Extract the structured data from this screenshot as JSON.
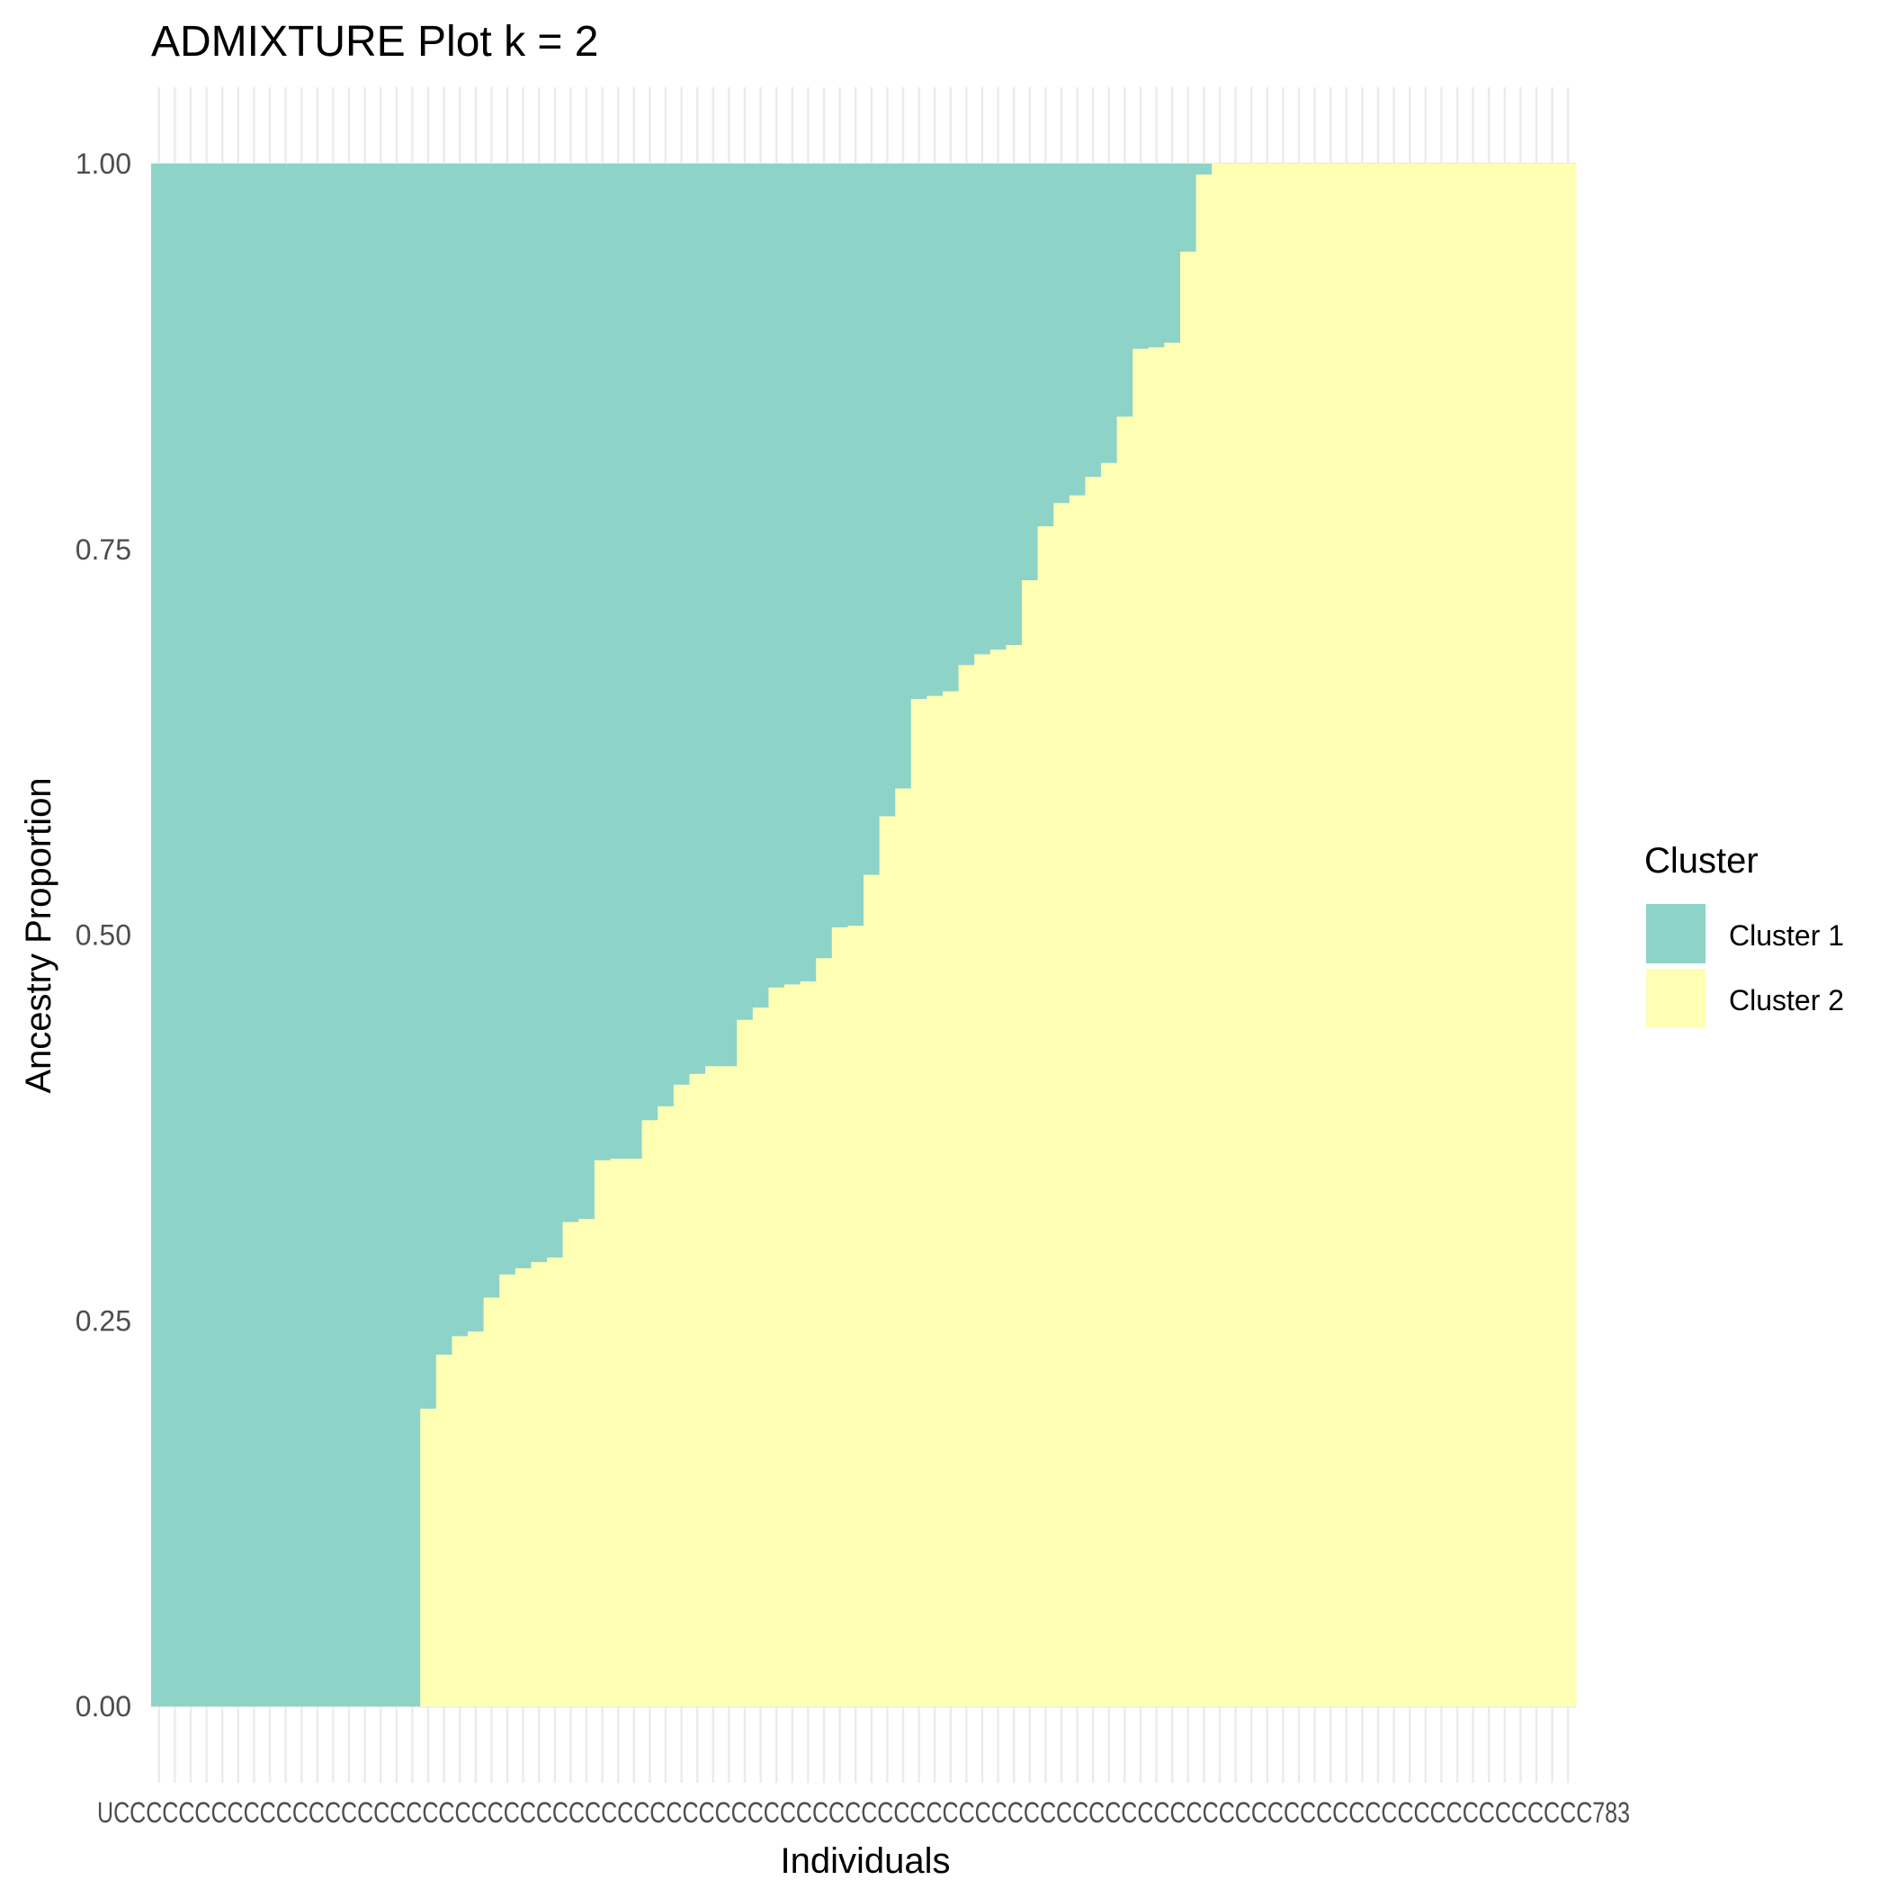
{
  "chart_data": {
    "type": "bar",
    "title": "ADMIXTURE Plot k = 2",
    "xlabel": "Individuals",
    "ylabel": "Ancestry Proportion",
    "ylim": [
      0,
      1
    ],
    "y_ticks": [
      "0.00",
      "0.25",
      "0.50",
      "0.75",
      "1.00"
    ],
    "stacked": true,
    "grid": true,
    "legend": {
      "title": "Cluster",
      "position": "right"
    },
    "x_tick_text": "UCCCCCCCCCCCCCCCCCCCCCCCCCCCCCCCCCCCCCCCCCCCCCCCCCCCCCCCCCCCCCCCCCCCCCCCCCCCCCCCCCCCCCCCCCCC783",
    "colors": {
      "Cluster 1": "#8DD3C7",
      "Cluster 2": "#FFFFB3"
    },
    "series": [
      {
        "name": "Cluster 1"
      },
      {
        "name": "Cluster 2"
      }
    ],
    "cluster2_values": [
      0,
      0,
      0,
      0,
      0,
      0,
      0,
      0,
      0,
      0,
      0,
      0,
      0,
      0,
      0,
      0,
      0,
      0.193,
      0.228,
      0.24,
      0.243,
      0.265,
      0.28,
      0.284,
      0.288,
      0.291,
      0.314,
      0.316,
      0.354,
      0.355,
      0.355,
      0.38,
      0.389,
      0.403,
      0.41,
      0.415,
      0.415,
      0.445,
      0.453,
      0.466,
      0.468,
      0.47,
      0.485,
      0.505,
      0.506,
      0.539,
      0.577,
      0.595,
      0.653,
      0.655,
      0.658,
      0.675,
      0.682,
      0.685,
      0.688,
      0.73,
      0.765,
      0.78,
      0.785,
      0.797,
      0.806,
      0.836,
      0.88,
      0.881,
      0.884,
      0.943,
      0.993,
      1,
      1,
      1,
      1,
      1,
      1,
      1,
      1,
      1,
      1,
      1,
      1,
      1,
      1,
      1,
      1,
      1,
      1,
      1,
      1,
      1,
      1,
      1
    ]
  }
}
